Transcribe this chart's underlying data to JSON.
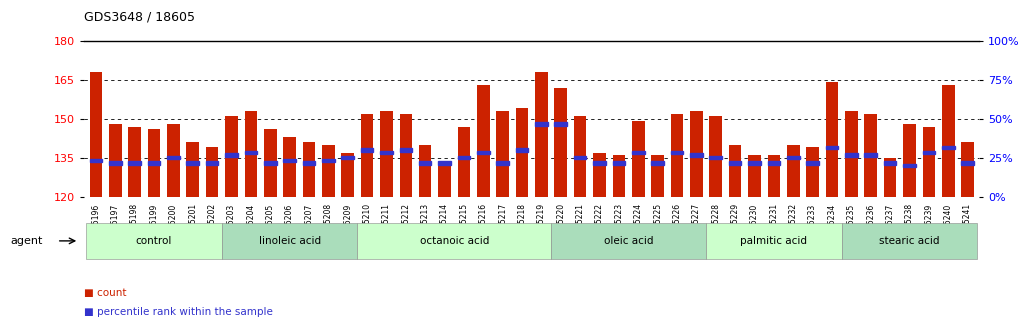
{
  "title": "GDS3648 / 18605",
  "ylim_left": [
    120,
    180
  ],
  "ylim_right": [
    0,
    100
  ],
  "yticks_left": [
    120,
    135,
    150,
    165,
    180
  ],
  "yticks_right": [
    0,
    25,
    50,
    75,
    100
  ],
  "ytick_labels_right": [
    "0%",
    "25%",
    "50%",
    "75%",
    "100%"
  ],
  "bar_color": "#CC2200",
  "dot_color": "#3333CC",
  "background_color": "#FFFFFF",
  "samples": [
    "GSM525196",
    "GSM525197",
    "GSM525198",
    "GSM525199",
    "GSM525200",
    "GSM525201",
    "GSM525202",
    "GSM525203",
    "GSM525204",
    "GSM525205",
    "GSM525206",
    "GSM525207",
    "GSM525208",
    "GSM525209",
    "GSM525210",
    "GSM525211",
    "GSM525212",
    "GSM525213",
    "GSM525214",
    "GSM525215",
    "GSM525216",
    "GSM525217",
    "GSM525218",
    "GSM525219",
    "GSM525220",
    "GSM525221",
    "GSM525222",
    "GSM525223",
    "GSM525224",
    "GSM525225",
    "GSM525226",
    "GSM525227",
    "GSM525228",
    "GSM525229",
    "GSM525230",
    "GSM525231",
    "GSM525232",
    "GSM525233",
    "GSM525234",
    "GSM525235",
    "GSM525236",
    "GSM525237",
    "GSM525238",
    "GSM525239",
    "GSM525240",
    "GSM525241"
  ],
  "bar_heights": [
    168,
    148,
    147,
    146,
    148,
    141,
    139,
    151,
    153,
    146,
    143,
    141,
    140,
    137,
    152,
    153,
    152,
    140,
    133,
    147,
    163,
    153,
    154,
    168,
    162,
    151,
    137,
    136,
    149,
    136,
    152,
    153,
    151,
    140,
    136,
    136,
    140,
    139,
    164,
    153,
    152,
    135,
    148,
    147,
    163,
    141
  ],
  "dot_positions": [
    134,
    133,
    133,
    133,
    135,
    133,
    133,
    136,
    137,
    133,
    134,
    133,
    134,
    135,
    138,
    137,
    138,
    133,
    133,
    135,
    137,
    133,
    138,
    148,
    148,
    135,
    133,
    133,
    137,
    133,
    137,
    136,
    135,
    133,
    133,
    133,
    135,
    133,
    139,
    136,
    136,
    133,
    132,
    137,
    139,
    133
  ],
  "groups": [
    {
      "label": "control",
      "start": 0,
      "end": 7
    },
    {
      "label": "linoleic acid",
      "start": 7,
      "end": 14
    },
    {
      "label": "octanoic acid",
      "start": 14,
      "end": 24
    },
    {
      "label": "oleic acid",
      "start": 24,
      "end": 32
    },
    {
      "label": "palmitic acid",
      "start": 32,
      "end": 39
    },
    {
      "label": "stearic acid",
      "start": 39,
      "end": 46
    }
  ],
  "group_colors": [
    "#CCFFCC",
    "#AADDBB",
    "#CCFFCC",
    "#AADDBB",
    "#CCFFCC",
    "#AADDBB"
  ],
  "legend_count_color": "#CC2200",
  "legend_rank_color": "#3333CC"
}
